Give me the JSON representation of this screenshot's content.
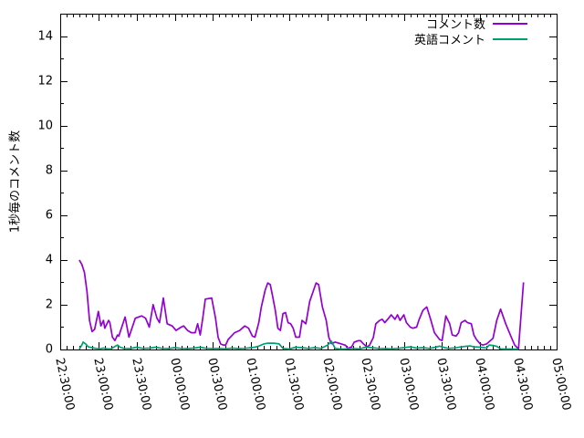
{
  "title": "",
  "y_axis": {
    "label": "1秒毎のコメント数",
    "tick_labels": [
      "0",
      "2",
      "4",
      "6",
      "8",
      "10",
      "12",
      "14"
    ],
    "range": [
      0,
      15
    ]
  },
  "x_axis": {
    "tick_labels": [
      "22:30:00",
      "23:00:00",
      "23:30:00",
      "00:00:00",
      "00:30:00",
      "01:00:00",
      "01:30:00",
      "02:00:00",
      "02:30:00",
      "03:00:00",
      "03:30:00",
      "04:00:00",
      "04:30:00",
      "05:00:00"
    ],
    "major_tick_interval_min": 30,
    "minor_tick_interval_min": 5,
    "range_minutes": [
      0,
      390
    ]
  },
  "legend": [
    {
      "label": "コメント数",
      "color": "#9400d3"
    },
    {
      "label": "英語コメント",
      "color": "#009e73"
    }
  ],
  "colors": {
    "series1": "#9400d3",
    "series2": "#009e73",
    "border": "#000000",
    "background": "#ffffff"
  },
  "chart_data": {
    "type": "line",
    "title": "",
    "xlabel": "",
    "ylabel": "1秒毎のコメント数",
    "x_unit": "minutes after 22:30:00",
    "x_start_label": "22:30:00",
    "ylim": [
      0,
      15
    ],
    "xlim_minutes": [
      0,
      390
    ],
    "grid": false,
    "legend_position": "top-right-inside",
    "series": [
      {
        "name": "コメント数",
        "color": "#9400d3",
        "points": [
          [
            15,
            4.0
          ],
          [
            17,
            3.8
          ],
          [
            19,
            3.45
          ],
          [
            21,
            2.6
          ],
          [
            23,
            1.3
          ],
          [
            25,
            0.8
          ],
          [
            27,
            0.9
          ],
          [
            30,
            1.7
          ],
          [
            32,
            1.05
          ],
          [
            34,
            1.3
          ],
          [
            35,
            0.95
          ],
          [
            38,
            1.3
          ],
          [
            39,
            1.2
          ],
          [
            41,
            0.55
          ],
          [
            43,
            0.4
          ],
          [
            45,
            0.65
          ],
          [
            46,
            0.6
          ],
          [
            51,
            1.45
          ],
          [
            54,
            0.55
          ],
          [
            59,
            1.4
          ],
          [
            64,
            1.5
          ],
          [
            67,
            1.4
          ],
          [
            70,
            1.0
          ],
          [
            73,
            2.0
          ],
          [
            76,
            1.4
          ],
          [
            78,
            1.2
          ],
          [
            81,
            2.3
          ],
          [
            84,
            1.15
          ],
          [
            88,
            1.05
          ],
          [
            91,
            0.85
          ],
          [
            95,
            1.0
          ],
          [
            97,
            1.05
          ],
          [
            100,
            0.85
          ],
          [
            103,
            0.75
          ],
          [
            106,
            0.75
          ],
          [
            108,
            1.15
          ],
          [
            110,
            0.65
          ],
          [
            112,
            1.4
          ],
          [
            114,
            2.25
          ],
          [
            119,
            2.3
          ],
          [
            122,
            1.4
          ],
          [
            124,
            0.55
          ],
          [
            126,
            0.25
          ],
          [
            128,
            0.2
          ],
          [
            130,
            0.2
          ],
          [
            132,
            0.45
          ],
          [
            137,
            0.75
          ],
          [
            141,
            0.85
          ],
          [
            145,
            1.05
          ],
          [
            148,
            0.95
          ],
          [
            151,
            0.6
          ],
          [
            153,
            0.55
          ],
          [
            156,
            1.2
          ],
          [
            158,
            1.9
          ],
          [
            161,
            2.65
          ],
          [
            163,
            2.97
          ],
          [
            165,
            2.9
          ],
          [
            167,
            2.35
          ],
          [
            169,
            1.75
          ],
          [
            171,
            0.95
          ],
          [
            173,
            0.85
          ],
          [
            175,
            1.6
          ],
          [
            177,
            1.65
          ],
          [
            179,
            1.2
          ],
          [
            181,
            1.15
          ],
          [
            183,
            0.95
          ],
          [
            185,
            0.55
          ],
          [
            188,
            0.55
          ],
          [
            190,
            1.3
          ],
          [
            193,
            1.15
          ],
          [
            196,
            2.15
          ],
          [
            201,
            2.97
          ],
          [
            203,
            2.9
          ],
          [
            206,
            1.9
          ],
          [
            208,
            1.5
          ],
          [
            209,
            1.3
          ],
          [
            211,
            0.55
          ],
          [
            213,
            0.26
          ],
          [
            216,
            0.33
          ],
          [
            220,
            0.26
          ],
          [
            224,
            0.19
          ],
          [
            226,
            0.05
          ],
          [
            229,
            0.12
          ],
          [
            231,
            0.33
          ],
          [
            234,
            0.39
          ],
          [
            236,
            0.39
          ],
          [
            238,
            0.26
          ],
          [
            241,
            0.12
          ],
          [
            243,
            0.19
          ],
          [
            246,
            0.53
          ],
          [
            248,
            1.15
          ],
          [
            251,
            1.3
          ],
          [
            253,
            1.35
          ],
          [
            255,
            1.2
          ],
          [
            258,
            1.4
          ],
          [
            260,
            1.55
          ],
          [
            263,
            1.35
          ],
          [
            265,
            1.55
          ],
          [
            267,
            1.3
          ],
          [
            270,
            1.55
          ],
          [
            272,
            1.2
          ],
          [
            275,
            1.0
          ],
          [
            277,
            0.95
          ],
          [
            280,
            1.0
          ],
          [
            282,
            1.35
          ],
          [
            285,
            1.75
          ],
          [
            288,
            1.9
          ],
          [
            291,
            1.35
          ],
          [
            294,
            0.75
          ],
          [
            298,
            0.45
          ],
          [
            300,
            0.4
          ],
          [
            303,
            1.5
          ],
          [
            306,
            1.15
          ],
          [
            308,
            0.65
          ],
          [
            311,
            0.6
          ],
          [
            313,
            0.75
          ],
          [
            315,
            1.2
          ],
          [
            318,
            1.3
          ],
          [
            320,
            1.2
          ],
          [
            323,
            1.15
          ],
          [
            325,
            0.65
          ],
          [
            327,
            0.45
          ],
          [
            330,
            0.25
          ],
          [
            332,
            0.2
          ],
          [
            335,
            0.25
          ],
          [
            340,
            0.5
          ],
          [
            343,
            1.3
          ],
          [
            346,
            1.8
          ],
          [
            350,
            1.15
          ],
          [
            354,
            0.6
          ],
          [
            357,
            0.2
          ],
          [
            360,
            0.02
          ],
          [
            364,
            3.0
          ]
        ]
      },
      {
        "name": "英語コメント",
        "color": "#009e73",
        "points": [
          [
            15,
            0.02
          ],
          [
            17,
            0.2
          ],
          [
            18,
            0.33
          ],
          [
            20,
            0.25
          ],
          [
            22,
            0.12
          ],
          [
            25,
            0.08
          ],
          [
            28,
            0.05
          ],
          [
            31,
            0.03
          ],
          [
            34,
            0.06
          ],
          [
            37,
            0.03
          ],
          [
            40,
            0.03
          ],
          [
            43,
            0.14
          ],
          [
            45,
            0.2
          ],
          [
            47,
            0.1
          ],
          [
            50,
            0.05
          ],
          [
            55,
            0.04
          ],
          [
            60,
            0.1
          ],
          [
            65,
            0.05
          ],
          [
            70,
            0.06
          ],
          [
            75,
            0.1
          ],
          [
            80,
            0.05
          ],
          [
            85,
            0.04
          ],
          [
            90,
            0.08
          ],
          [
            95,
            0.05
          ],
          [
            100,
            0.04
          ],
          [
            105,
            0.06
          ],
          [
            110,
            0.1
          ],
          [
            115,
            0.05
          ],
          [
            120,
            0.04
          ],
          [
            125,
            0.05
          ],
          [
            130,
            0.03
          ],
          [
            135,
            0.06
          ],
          [
            140,
            0.04
          ],
          [
            145,
            0.05
          ],
          [
            150,
            0.08
          ],
          [
            153,
            0.1
          ],
          [
            156,
            0.15
          ],
          [
            160,
            0.25
          ],
          [
            163,
            0.28
          ],
          [
            168,
            0.28
          ],
          [
            172,
            0.25
          ],
          [
            175,
            0.05
          ],
          [
            180,
            0.02
          ],
          [
            185,
            0.1
          ],
          [
            190,
            0.08
          ],
          [
            195,
            0.05
          ],
          [
            200,
            0.08
          ],
          [
            205,
            0.05
          ],
          [
            210,
            0.19
          ],
          [
            213,
            0.37
          ],
          [
            216,
            0.05
          ],
          [
            220,
            0.02
          ],
          [
            225,
            0.03
          ],
          [
            230,
            0.05
          ],
          [
            235,
            0.03
          ],
          [
            240,
            0.1
          ],
          [
            245,
            0.08
          ],
          [
            250,
            0.05
          ],
          [
            255,
            0.04
          ],
          [
            260,
            0.03
          ],
          [
            265,
            0.05
          ],
          [
            270,
            0.08
          ],
          [
            275,
            0.12
          ],
          [
            280,
            0.06
          ],
          [
            285,
            0.08
          ],
          [
            290,
            0.05
          ],
          [
            295,
            0.1
          ],
          [
            298,
            0.15
          ],
          [
            302,
            0.08
          ],
          [
            305,
            0.05
          ],
          [
            310,
            0.07
          ],
          [
            315,
            0.12
          ],
          [
            318,
            0.14
          ],
          [
            322,
            0.16
          ],
          [
            325,
            0.12
          ],
          [
            330,
            0.1
          ],
          [
            335,
            0.07
          ],
          [
            337,
            0.2
          ],
          [
            340,
            0.18
          ],
          [
            343,
            0.14
          ],
          [
            346,
            0.03
          ],
          [
            350,
            0.02
          ],
          [
            355,
            0.02
          ],
          [
            360,
            0.01
          ]
        ]
      }
    ]
  }
}
